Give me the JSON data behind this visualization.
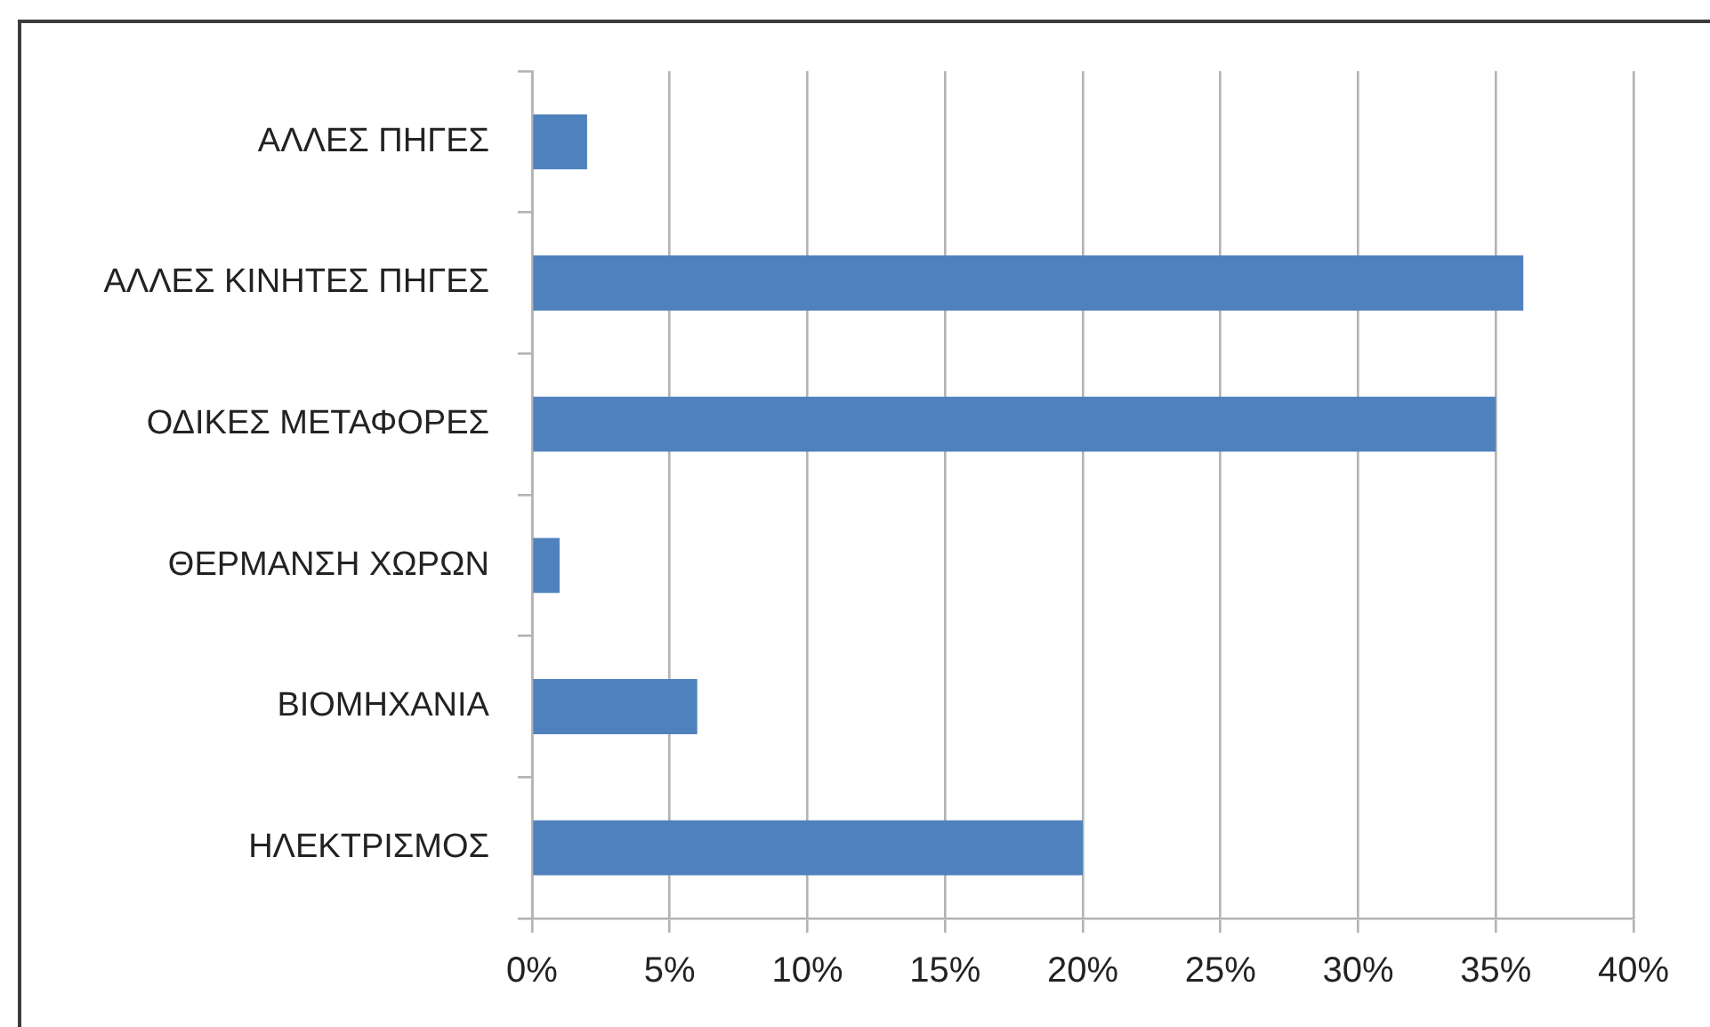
{
  "chart_data": {
    "type": "bar",
    "orientation": "horizontal",
    "categories": [
      "ΑΛΛΕΣ ΠΗΓΕΣ",
      "ΑΛΛΕΣ ΚΙΝΗΤΕΣ ΠΗΓΕΣ",
      "ΟΔΙΚΕΣ ΜΕΤΑΦΟΡΕΣ",
      "ΘΕΡΜΑΝΣΗ ΧΩΡΩΝ",
      "ΒΙΟΜΗΧΑΝΙΑ",
      "ΗΛΕΚΤΡΙΣΜΟΣ"
    ],
    "values": [
      2,
      36,
      35,
      1,
      6,
      20
    ],
    "color": "#4f81bd",
    "xlim": [
      0,
      40
    ],
    "xticks": [
      {
        "value": 0,
        "label": "0%"
      },
      {
        "value": 5,
        "label": "5%"
      },
      {
        "value": 10,
        "label": "10%"
      },
      {
        "value": 15,
        "label": "15%"
      },
      {
        "value": 20,
        "label": "20%"
      },
      {
        "value": 25,
        "label": "25%"
      },
      {
        "value": 30,
        "label": "30%"
      },
      {
        "value": 35,
        "label": "35%"
      },
      {
        "value": 40,
        "label": "40%"
      }
    ],
    "grid": "x",
    "legend": false
  }
}
